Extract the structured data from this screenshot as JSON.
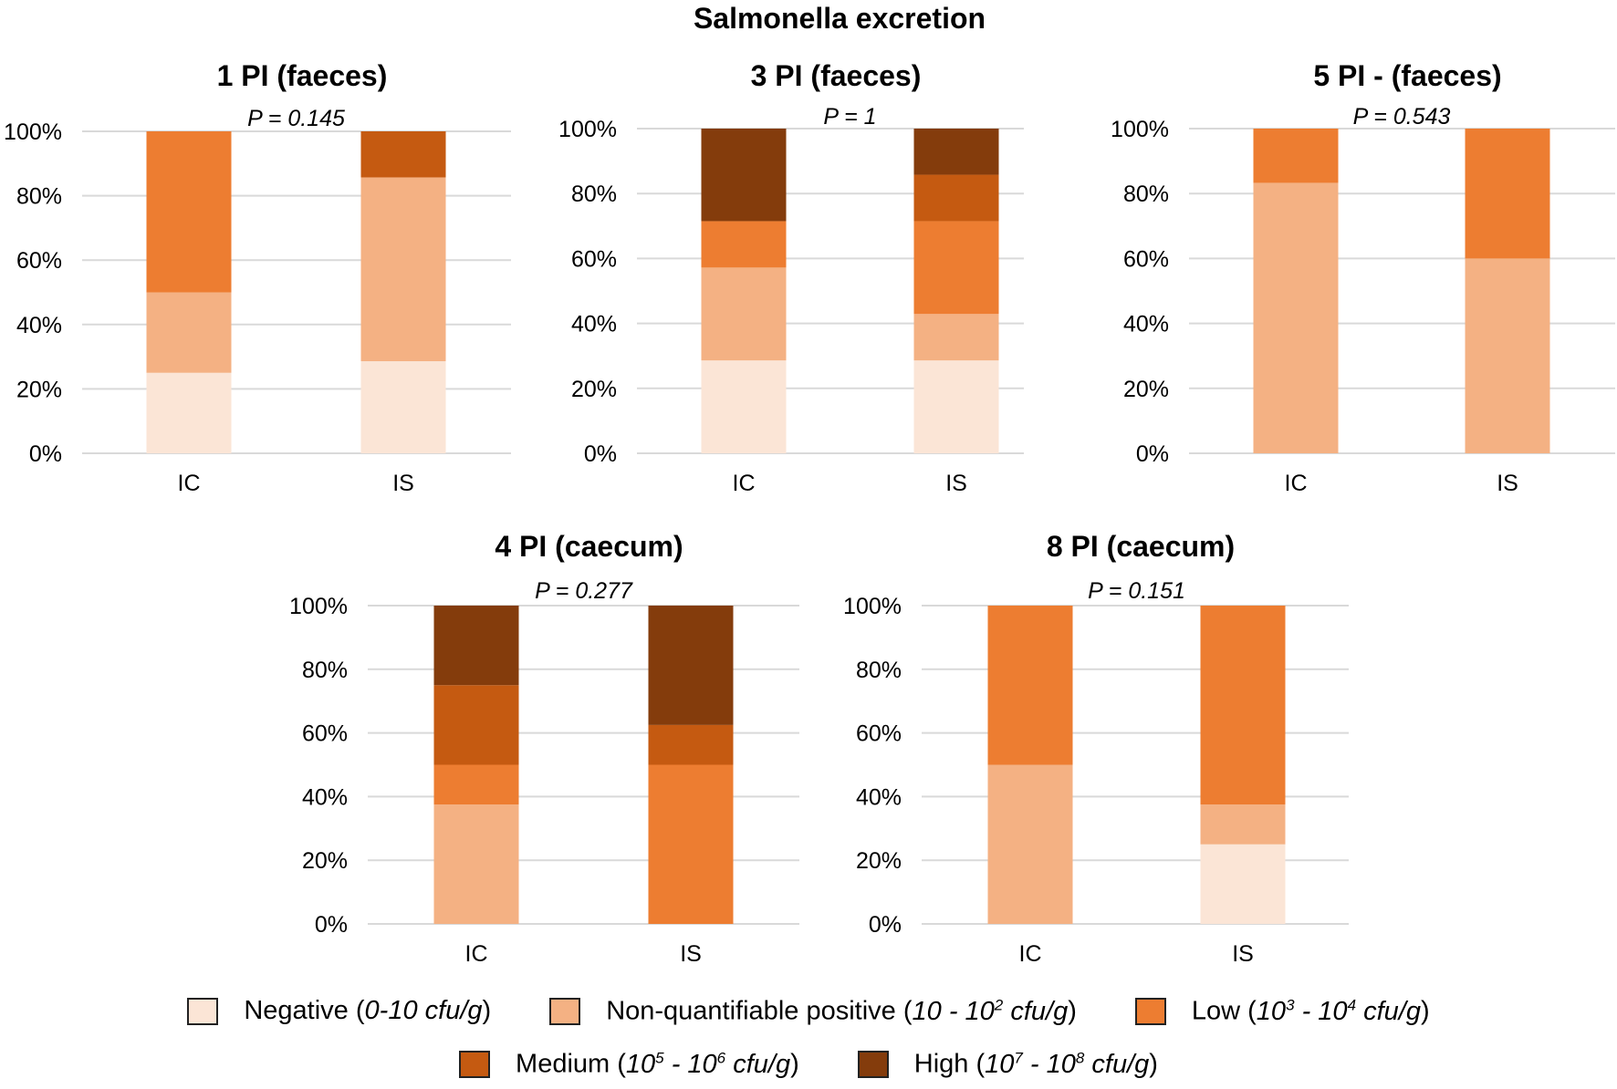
{
  "figure_title": "Salmonella excretion",
  "colors": {
    "negative": "#FBE5D6",
    "non_quantifiable": "#F4B183",
    "low": "#ED7D31",
    "medium": "#C55A11",
    "high": "#843C0C",
    "grid": "#D9D9D9"
  },
  "legend": {
    "row1": [
      {
        "key": "negative",
        "label": "Negative",
        "range": "0-10 cfu/g",
        "color": "#FBE5D6"
      },
      {
        "key": "non_quantifiable",
        "label": "Non-quantifiable positive",
        "range_prefix": "10 - 10",
        "sup1": "2",
        "range_suffix": " cfu/g",
        "color": "#F4B183"
      },
      {
        "key": "low",
        "label": "Low",
        "range_prefix": "10",
        "sup1": "3",
        "range_mid": " - 10",
        "sup2": "4",
        "range_suffix": " cfu/g",
        "color": "#ED7D31"
      }
    ],
    "row2": [
      {
        "key": "medium",
        "label": "Medium",
        "range_prefix": "10",
        "sup1": "5",
        "range_mid": " - 10",
        "sup2": "6",
        "range_suffix": " cfu/g",
        "color": "#C55A11"
      },
      {
        "key": "high",
        "label": "High",
        "range_prefix": "10",
        "sup1": "7",
        "range_mid": " - 10",
        "sup2": "8",
        "range_suffix": " cfu/g",
        "color": "#843C0C"
      }
    ]
  },
  "chart_data": [
    {
      "type": "bar",
      "stacked": true,
      "title": "1 PI (faeces)",
      "annotation": "P = 0.145",
      "categories": [
        "IC",
        "IS"
      ],
      "y_ticks": [
        "0%",
        "20%",
        "40%",
        "60%",
        "80%",
        "100%"
      ],
      "ylim": [
        0,
        100
      ],
      "series": [
        {
          "name": "Negative",
          "key": "negative",
          "values": [
            25,
            28.6
          ]
        },
        {
          "name": "Non-quantifiable positive",
          "key": "non_quantifiable",
          "values": [
            25,
            57.1
          ]
        },
        {
          "name": "Low",
          "key": "low",
          "values": [
            50,
            0
          ]
        },
        {
          "name": "Medium",
          "key": "medium",
          "values": [
            0,
            14.3
          ]
        },
        {
          "name": "High",
          "key": "high",
          "values": [
            0,
            0
          ]
        }
      ]
    },
    {
      "type": "bar",
      "stacked": true,
      "title": "3 PI (faeces)",
      "annotation": "P = 1",
      "categories": [
        "IC",
        "IS"
      ],
      "y_ticks": [
        "0%",
        "20%",
        "40%",
        "60%",
        "80%",
        "100%"
      ],
      "ylim": [
        0,
        100
      ],
      "series": [
        {
          "name": "Negative",
          "key": "negative",
          "values": [
            28.6,
            28.6
          ]
        },
        {
          "name": "Non-quantifiable positive",
          "key": "non_quantifiable",
          "values": [
            28.6,
            14.3
          ]
        },
        {
          "name": "Low",
          "key": "low",
          "values": [
            14.3,
            28.6
          ]
        },
        {
          "name": "Medium",
          "key": "medium",
          "values": [
            0,
            14.3
          ]
        },
        {
          "name": "High",
          "key": "high",
          "values": [
            28.5,
            14.2
          ]
        }
      ]
    },
    {
      "type": "bar",
      "stacked": true,
      "title": "5 PI - (faeces)",
      "annotation": "P = 0.543",
      "categories": [
        "IC",
        "IS"
      ],
      "y_ticks": [
        "0%",
        "20%",
        "40%",
        "60%",
        "80%",
        "100%"
      ],
      "ylim": [
        0,
        100
      ],
      "series": [
        {
          "name": "Negative",
          "key": "negative",
          "values": [
            0,
            0
          ]
        },
        {
          "name": "Non-quantifiable positive",
          "key": "non_quantifiable",
          "values": [
            83.3,
            60
          ]
        },
        {
          "name": "Low",
          "key": "low",
          "values": [
            16.7,
            40
          ]
        },
        {
          "name": "Medium",
          "key": "medium",
          "values": [
            0,
            0
          ]
        },
        {
          "name": "High",
          "key": "high",
          "values": [
            0,
            0
          ]
        }
      ]
    },
    {
      "type": "bar",
      "stacked": true,
      "title": "4 PI (caecum)",
      "annotation": "P = 0.277",
      "categories": [
        "IC",
        "IS"
      ],
      "y_ticks": [
        "0%",
        "20%",
        "40%",
        "60%",
        "80%",
        "100%"
      ],
      "ylim": [
        0,
        100
      ],
      "series": [
        {
          "name": "Negative",
          "key": "negative",
          "values": [
            0,
            0
          ]
        },
        {
          "name": "Non-quantifiable positive",
          "key": "non_quantifiable",
          "values": [
            37.5,
            0
          ]
        },
        {
          "name": "Low",
          "key": "low",
          "values": [
            12.5,
            50
          ]
        },
        {
          "name": "Medium",
          "key": "medium",
          "values": [
            25,
            12.5
          ]
        },
        {
          "name": "High",
          "key": "high",
          "values": [
            25,
            37.5
          ]
        }
      ]
    },
    {
      "type": "bar",
      "stacked": true,
      "title": "8 PI (caecum)",
      "annotation": "P = 0.151",
      "categories": [
        "IC",
        "IS"
      ],
      "y_ticks": [
        "0%",
        "20%",
        "40%",
        "60%",
        "80%",
        "100%"
      ],
      "ylim": [
        0,
        100
      ],
      "series": [
        {
          "name": "Negative",
          "key": "negative",
          "values": [
            0,
            25
          ]
        },
        {
          "name": "Non-quantifiable positive",
          "key": "non_quantifiable",
          "values": [
            50,
            12.5
          ]
        },
        {
          "name": "Low",
          "key": "low",
          "values": [
            50,
            62.5
          ]
        },
        {
          "name": "Medium",
          "key": "medium",
          "values": [
            0,
            0
          ]
        },
        {
          "name": "High",
          "key": "high",
          "values": [
            0,
            0
          ]
        }
      ]
    }
  ]
}
